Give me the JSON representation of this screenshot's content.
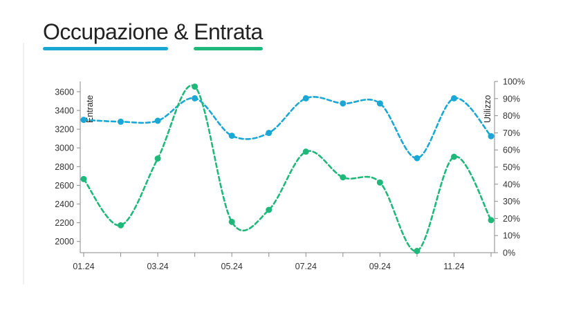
{
  "title": {
    "part1": "Occupazione",
    "amp": "&",
    "part2": "Entrata"
  },
  "colors": {
    "occupancy": "#1aa7d4",
    "revenue": "#1fb87a",
    "axis": "#8a8a8a"
  },
  "chart_data": {
    "type": "line",
    "x": [
      "01.24",
      "02.24",
      "03.24",
      "04.24",
      "05.24",
      "06.24",
      "07.24",
      "08.24",
      "09.24",
      "10.24",
      "11.24",
      "12.24"
    ],
    "x_tick_labels": [
      "01.24",
      "",
      "03.24",
      "",
      "05.24",
      "",
      "07.24",
      "",
      "09.24",
      "",
      "11.24",
      ""
    ],
    "y_left": {
      "label": "Entrate",
      "ticks": [
        2000,
        2200,
        2400,
        2600,
        2800,
        3000,
        3200,
        3400,
        3600
      ],
      "range": [
        1880,
        3710
      ]
    },
    "y_right": {
      "label": "Utilizzo",
      "ticks": [
        "0%",
        "10%",
        "20%",
        "30%",
        "40%",
        "50%",
        "60%",
        "70%",
        "80%",
        "90%",
        "100%"
      ],
      "range": [
        0,
        100
      ]
    },
    "series": [
      {
        "axis": "left",
        "color": "#1aa7d4",
        "values": [
          3300,
          3280,
          3290,
          3530,
          3130,
          3160,
          3530,
          3475,
          3475,
          2890,
          3530,
          3125
        ]
      },
      {
        "axis": "right",
        "color": "#1fb87a",
        "values": [
          43,
          16,
          55,
          97,
          18,
          25,
          59,
          44,
          41,
          1,
          56,
          19
        ]
      }
    ],
    "grid": false,
    "line_style": "dashed-smooth"
  }
}
